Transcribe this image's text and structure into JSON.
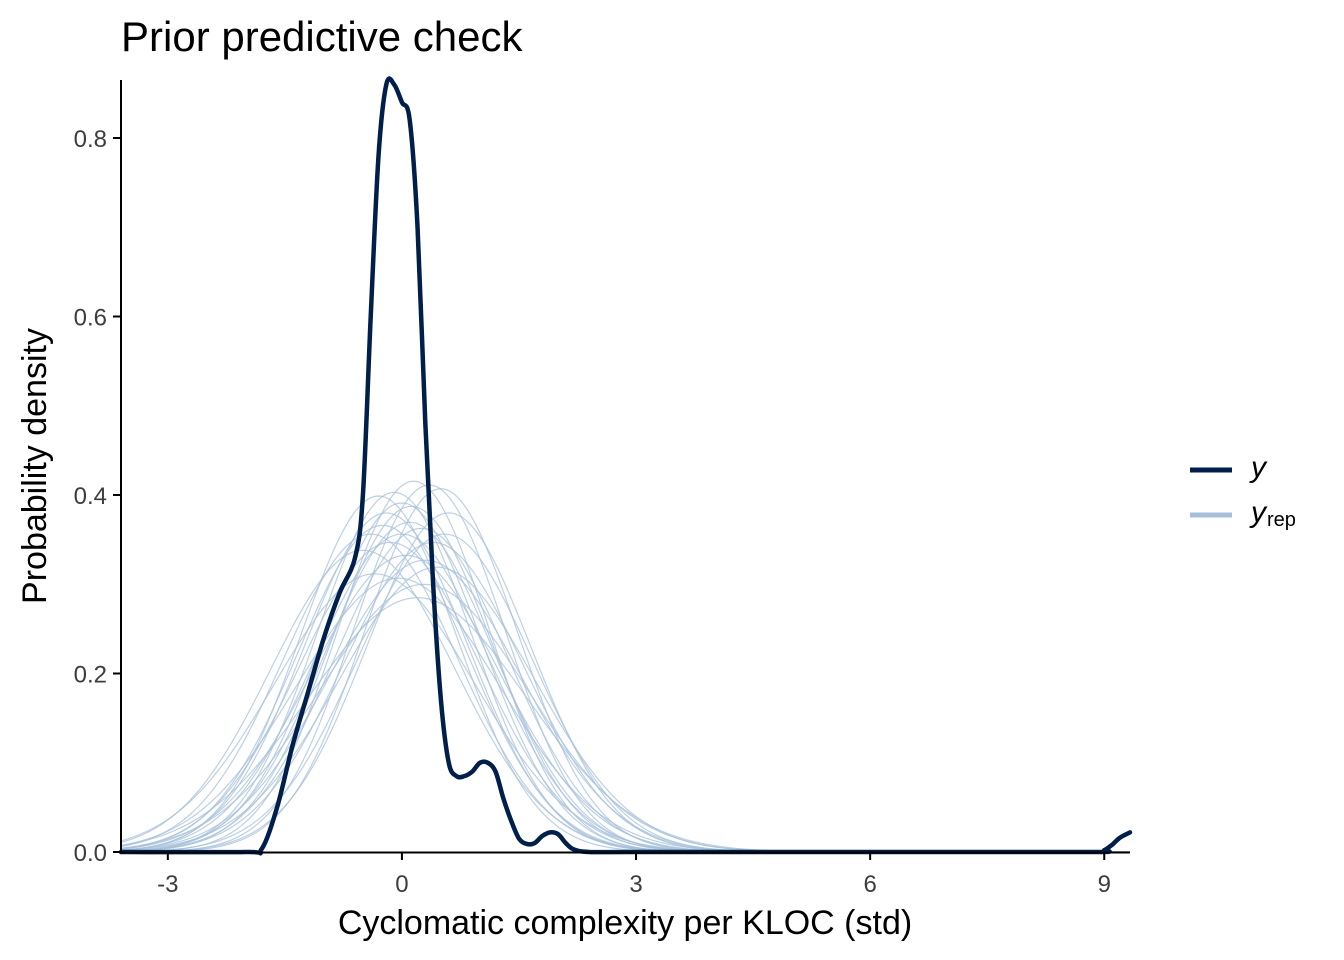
{
  "chart_data": {
    "type": "line",
    "title": "Prior predictive check",
    "xlabel": "Cyclomatic complexity per KLOC (std)",
    "ylabel": "Probability density",
    "xlim": [
      -3.6,
      9.33
    ],
    "ylim": [
      0,
      0.865
    ],
    "x_ticks": [
      -3,
      0,
      3,
      6,
      9
    ],
    "x_tick_labels": [
      "-3",
      "0",
      "3",
      "6",
      "9"
    ],
    "y_ticks": [
      0,
      0.2,
      0.4,
      0.6,
      0.8
    ],
    "y_tick_labels": [
      "0.0",
      "0.2",
      "0.4",
      "0.6",
      "0.8"
    ],
    "grid": false,
    "legend_position": "right",
    "legend": [
      {
        "label": "y",
        "subscript": "",
        "color": "#011f4b"
      },
      {
        "label": "y",
        "subscript": "rep",
        "color": "#a7c0da"
      }
    ],
    "series": [
      {
        "role": "y",
        "color": "#011f4b",
        "x": [
          -3.6,
          -2.0,
          -1.8,
          -1.6,
          -1.4,
          -1.2,
          -1.0,
          -0.8,
          -0.6,
          -0.5,
          -0.4,
          -0.3,
          -0.2,
          -0.1,
          0.0,
          0.1,
          0.2,
          0.3,
          0.4,
          0.5,
          0.6,
          0.7,
          0.8,
          0.9,
          1.0,
          1.1,
          1.2,
          1.3,
          1.4,
          1.5,
          1.6,
          1.7,
          1.8,
          1.9,
          2.0,
          2.1,
          2.2,
          2.4,
          3.0,
          5.0,
          7.0,
          8.9,
          9.0,
          9.1,
          9.2,
          9.33
        ],
        "y": [
          0.0,
          0.0,
          0.003,
          0.05,
          0.12,
          0.18,
          0.24,
          0.29,
          0.33,
          0.4,
          0.6,
          0.78,
          0.86,
          0.86,
          0.84,
          0.82,
          0.7,
          0.48,
          0.3,
          0.17,
          0.1,
          0.085,
          0.085,
          0.09,
          0.1,
          0.1,
          0.09,
          0.06,
          0.035,
          0.015,
          0.009,
          0.01,
          0.018,
          0.022,
          0.02,
          0.01,
          0.003,
          0.0,
          0.0,
          0.0,
          0.0,
          0.0,
          0.002,
          0.008,
          0.016,
          0.022
        ]
      },
      {
        "role": "yrep",
        "color": "#a7c0da",
        "mu": 0.0,
        "sigma": 1.02
      },
      {
        "role": "yrep",
        "color": "#a7c0da",
        "mu": 0.15,
        "sigma": 0.96
      },
      {
        "role": "yrep",
        "color": "#a7c0da",
        "mu": -0.2,
        "sigma": 1.05
      },
      {
        "role": "yrep",
        "color": "#a7c0da",
        "mu": 0.35,
        "sigma": 0.97
      },
      {
        "role": "yrep",
        "color": "#a7c0da",
        "mu": -0.4,
        "sigma": 1.12
      },
      {
        "role": "yrep",
        "color": "#a7c0da",
        "mu": 0.5,
        "sigma": 0.98
      },
      {
        "role": "yrep",
        "color": "#a7c0da",
        "mu": 0.05,
        "sigma": 1.2
      },
      {
        "role": "yrep",
        "color": "#a7c0da",
        "mu": 0.25,
        "sigma": 1.1
      },
      {
        "role": "yrep",
        "color": "#a7c0da",
        "mu": -0.1,
        "sigma": 0.99
      },
      {
        "role": "yrep",
        "color": "#a7c0da",
        "mu": 0.4,
        "sigma": 1.15
      },
      {
        "role": "yrep",
        "color": "#a7c0da",
        "mu": -0.3,
        "sigma": 1.0
      },
      {
        "role": "yrep",
        "color": "#a7c0da",
        "mu": 0.1,
        "sigma": 1.08
      },
      {
        "role": "yrep",
        "color": "#a7c0da",
        "mu": 0.6,
        "sigma": 1.05
      },
      {
        "role": "yrep",
        "color": "#a7c0da",
        "mu": -0.05,
        "sigma": 1.3
      },
      {
        "role": "yrep",
        "color": "#a7c0da",
        "mu": 0.2,
        "sigma": 1.4
      },
      {
        "role": "yrep",
        "color": "#a7c0da",
        "mu": -0.5,
        "sigma": 1.18
      },
      {
        "role": "yrep",
        "color": "#a7c0da",
        "mu": 0.3,
        "sigma": 1.22
      },
      {
        "role": "yrep",
        "color": "#a7c0da",
        "mu": 0.0,
        "sigma": 1.12
      },
      {
        "role": "yrep",
        "color": "#a7c0da",
        "mu": 0.45,
        "sigma": 1.25
      },
      {
        "role": "yrep",
        "color": "#a7c0da",
        "mu": -0.15,
        "sigma": 1.15
      },
      {
        "role": "yrep",
        "color": "#a7c0da",
        "mu": 0.55,
        "sigma": 1.12
      },
      {
        "role": "yrep",
        "color": "#a7c0da",
        "mu": -0.35,
        "sigma": 1.28
      },
      {
        "role": "yrep",
        "color": "#a7c0da",
        "mu": 0.12,
        "sigma": 1.03
      },
      {
        "role": "yrep",
        "color": "#a7c0da",
        "mu": 0.28,
        "sigma": 1.33
      },
      {
        "role": "yrep",
        "color": "#a7c0da",
        "mu": -0.25,
        "sigma": 1.09
      }
    ]
  }
}
